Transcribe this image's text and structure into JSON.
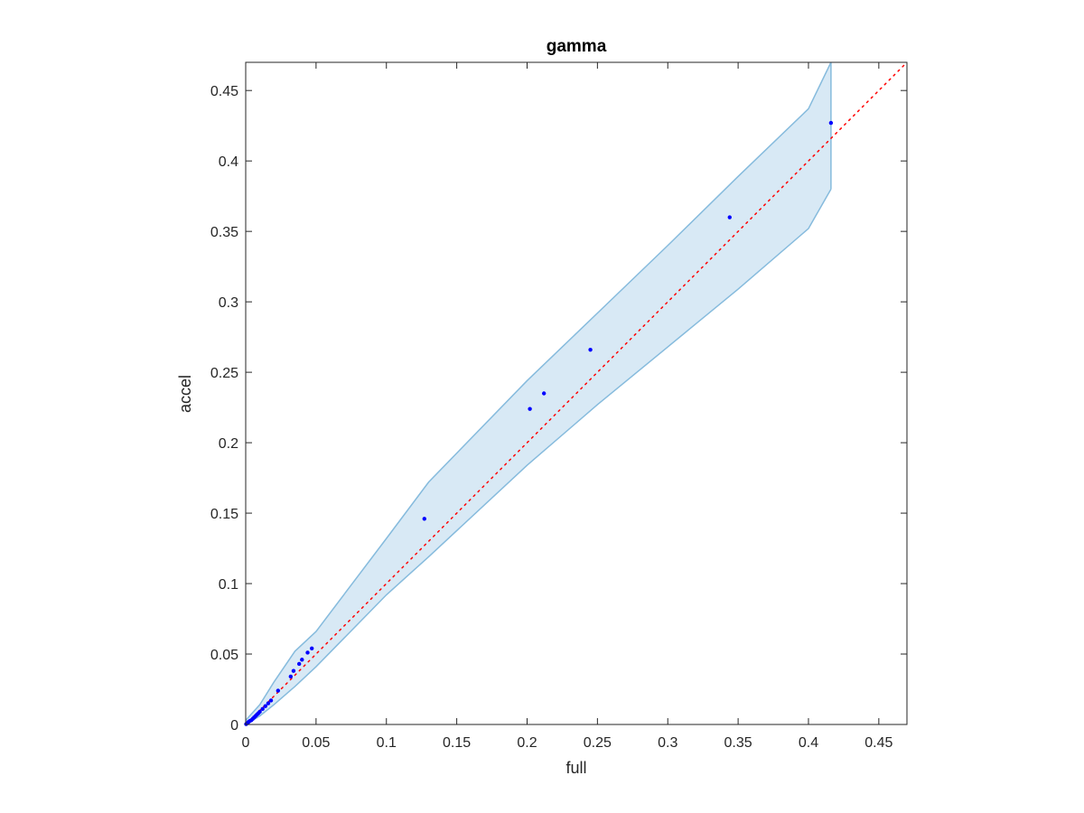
{
  "chart_data": {
    "type": "scatter",
    "title": "gamma",
    "xlabel": "full",
    "ylabel": "accel",
    "xlim": [
      0,
      0.47
    ],
    "ylim": [
      0,
      0.47
    ],
    "xticks": [
      0,
      0.05,
      0.1,
      0.15,
      0.2,
      0.25,
      0.3,
      0.35,
      0.4,
      0.45
    ],
    "xtick_labels": [
      "0",
      "0.05",
      "0.1",
      "0.15",
      "0.2",
      "0.25",
      "0.3",
      "0.35",
      "0.4",
      "0.45"
    ],
    "yticks": [
      0,
      0.05,
      0.1,
      0.15,
      0.2,
      0.25,
      0.3,
      0.35,
      0.4,
      0.45
    ],
    "ytick_labels": [
      "0",
      "0.05",
      "0.1",
      "0.15",
      "0.2",
      "0.25",
      "0.3",
      "0.35",
      "0.4",
      "0.45"
    ],
    "grid": false,
    "points": {
      "x": [
        0.0003,
        0.001,
        0.0015,
        0.002,
        0.003,
        0.004,
        0.005,
        0.006,
        0.007,
        0.008,
        0.009,
        0.01,
        0.012,
        0.014,
        0.016,
        0.018,
        0.023,
        0.032,
        0.034,
        0.038,
        0.04,
        0.044,
        0.047,
        0.127,
        0.202,
        0.212,
        0.245,
        0.344,
        0.416
      ],
      "y": [
        0.0003,
        0.0008,
        0.0012,
        0.0018,
        0.0025,
        0.003,
        0.004,
        0.005,
        0.006,
        0.007,
        0.008,
        0.009,
        0.011,
        0.013,
        0.015,
        0.017,
        0.024,
        0.034,
        0.038,
        0.043,
        0.046,
        0.051,
        0.054,
        0.146,
        0.224,
        0.235,
        0.266,
        0.36,
        0.427
      ],
      "color": "#0000ff"
    },
    "band": {
      "x": [
        0,
        0.01,
        0.02,
        0.035,
        0.05,
        0.1,
        0.13,
        0.2,
        0.25,
        0.3,
        0.35,
        0.4,
        0.416
      ],
      "upper": [
        0.003,
        0.014,
        0.03,
        0.052,
        0.066,
        0.132,
        0.172,
        0.244,
        0.292,
        0.34,
        0.389,
        0.437,
        0.47
      ],
      "lower": [
        0,
        0.006,
        0.014,
        0.027,
        0.041,
        0.092,
        0.119,
        0.184,
        0.227,
        0.268,
        0.309,
        0.352,
        0.38
      ],
      "fill_color": "#d8e9f5",
      "edge_color": "#86bbdd"
    },
    "reference_line": {
      "x": [
        0,
        0.47
      ],
      "y": [
        0,
        0.47
      ],
      "color": "#ff0000",
      "style": "dotted"
    }
  }
}
